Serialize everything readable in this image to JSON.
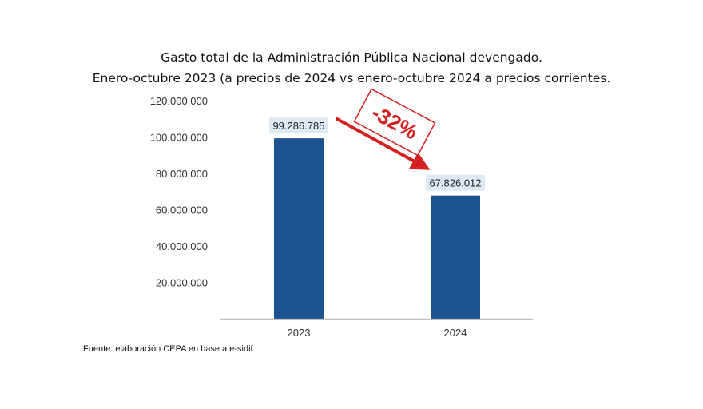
{
  "chart_data": {
    "type": "bar",
    "title": "Gasto total de la Administración Pública Nacional devengado.",
    "subtitle": "Enero-octubre 2023 (a precios de 2024 vs enero-octubre 2024 a precios corrientes.",
    "categories": [
      "2023",
      "2024"
    ],
    "values": [
      99286785,
      67826012
    ],
    "data_labels": [
      "99.286.785",
      "67.826.012"
    ],
    "ylim": [
      0,
      120000000
    ],
    "yticks": [
      0,
      20000000,
      40000000,
      60000000,
      80000000,
      100000000,
      120000000
    ],
    "ytick_labels": [
      "-",
      "20.000.000",
      "40.000.000",
      "60.000.000",
      "80.000.000",
      "100.000.000",
      "120.000.000"
    ],
    "xlabel": "",
    "ylabel": "",
    "grid": false,
    "legend": "none",
    "annotation": {
      "text": "-32%",
      "from": "2023",
      "to": "2024"
    },
    "source": "Fuente: elaboración CEPA en base a e-sidif"
  },
  "colors": {
    "bar": "#1c5291",
    "label_bg": "#dfe9f6",
    "annotation": "#d42020",
    "axis": "#bfbfbf",
    "text": "#333333"
  }
}
